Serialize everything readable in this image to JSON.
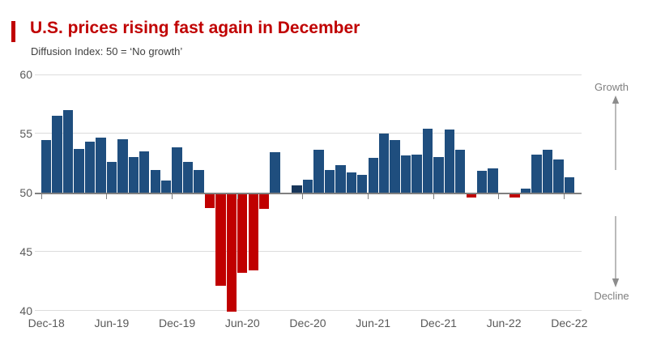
{
  "chart_data": {
    "type": "bar",
    "title": "U.S. prices rising fast again in December",
    "subtitle": "Diffusion Index: 50 = ‘No growth’",
    "baseline": 50,
    "ylim": [
      40,
      60
    ],
    "yticks": [
      60,
      55,
      50,
      45,
      40
    ],
    "xticks": [
      "Dec-18",
      "Jun-19",
      "Dec-19",
      "Jun-20",
      "Dec-20",
      "Jun-21",
      "Dec-21",
      "Jun-22",
      "Dec-22"
    ],
    "grid": "horizontal",
    "legend": "none",
    "annotations": {
      "growth": "Growth",
      "decline": "Decline"
    },
    "highlight_months": [
      "Nov-20"
    ],
    "colors": {
      "positive_bar": "#1f4e7e",
      "negative_bar": "#c00000",
      "highlight_bar": "#17365a",
      "title_red": "#c00000",
      "axis_line": "#7f7f7f",
      "gridline": "#dcdcdc",
      "label_gray": "#595959",
      "annotation_gray": "#7f7f7f"
    },
    "points": [
      {
        "month": "Dec-18",
        "value": 54.5
      },
      {
        "month": "Jan-19",
        "value": 56.6
      },
      {
        "month": "Feb-19",
        "value": 57.1
      },
      {
        "month": "Mar-19",
        "value": 53.8
      },
      {
        "month": "Apr-19",
        "value": 54.4
      },
      {
        "month": "May-19",
        "value": 54.7
      },
      {
        "month": "Jun-19",
        "value": 52.7
      },
      {
        "month": "Jul-19",
        "value": 54.6
      },
      {
        "month": "Aug-19",
        "value": 53.1
      },
      {
        "month": "Sep-19",
        "value": 53.6
      },
      {
        "month": "Oct-19",
        "value": 52.0
      },
      {
        "month": "Nov-19",
        "value": 51.1
      },
      {
        "month": "Dec-19",
        "value": 53.9
      },
      {
        "month": "Jan-20",
        "value": 52.7
      },
      {
        "month": "Feb-20",
        "value": 52.0
      },
      {
        "month": "Mar-20",
        "value": 48.8
      },
      {
        "month": "Apr-20",
        "value": 42.2
      },
      {
        "month": "May-20",
        "value": 40.0
      },
      {
        "month": "Jun-20",
        "value": 43.3
      },
      {
        "month": "Jul-20",
        "value": 43.5
      },
      {
        "month": "Aug-20",
        "value": 48.7
      },
      {
        "month": "Sep-20",
        "value": 53.5
      },
      {
        "month": "Oct-20",
        "value": 50.0
      },
      {
        "month": "Nov-20",
        "value": 50.7
      },
      {
        "month": "Dec-20",
        "value": 51.2
      },
      {
        "month": "Jan-21",
        "value": 53.7
      },
      {
        "month": "Feb-21",
        "value": 52.0
      },
      {
        "month": "Mar-21",
        "value": 52.4
      },
      {
        "month": "Apr-21",
        "value": 51.8
      },
      {
        "month": "May-21",
        "value": 51.6
      },
      {
        "month": "Jun-21",
        "value": 53.0
      },
      {
        "month": "Jul-21",
        "value": 55.1
      },
      {
        "month": "Aug-21",
        "value": 54.5
      },
      {
        "month": "Sep-21",
        "value": 53.2
      },
      {
        "month": "Oct-21",
        "value": 53.3
      },
      {
        "month": "Nov-21",
        "value": 55.5
      },
      {
        "month": "Dec-21",
        "value": 53.1
      },
      {
        "month": "Jan-22",
        "value": 55.4
      },
      {
        "month": "Feb-22",
        "value": 53.7
      },
      {
        "month": "Mar-22",
        "value": 49.7
      },
      {
        "month": "Apr-22",
        "value": 51.9
      },
      {
        "month": "May-22",
        "value": 52.1
      },
      {
        "month": "Jun-22",
        "value": 50.0
      },
      {
        "month": "Jul-22",
        "value": 49.7
      },
      {
        "month": "Aug-22",
        "value": 50.4
      },
      {
        "month": "Sep-22",
        "value": 53.3
      },
      {
        "month": "Oct-22",
        "value": 53.7
      },
      {
        "month": "Nov-22",
        "value": 52.9
      },
      {
        "month": "Dec-22",
        "value": 51.4
      }
    ]
  }
}
